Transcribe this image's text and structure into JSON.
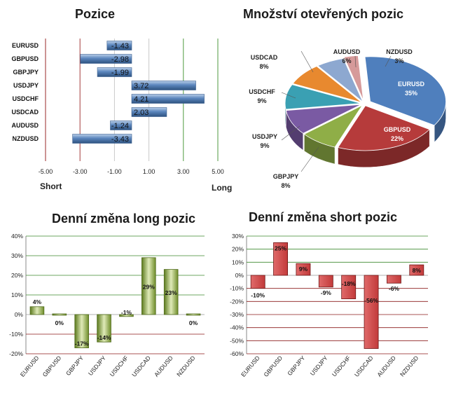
{
  "colors": {
    "bar_blue": "#5b86bd",
    "bar_green": "#8aa83e",
    "bar_dark_green": "#4f6a1c",
    "bar_red": "#c23a3a",
    "grid_green": "#3d8a2e",
    "grid_red": "#8b1a1a"
  },
  "chart_data": [
    {
      "id": "positions",
      "type": "bar",
      "orientation": "horizontal",
      "title": "Pozice",
      "categories": [
        "EURUSD",
        "GBPUSD",
        "GBPJPY",
        "USDJPY",
        "USDCHF",
        "USDCAD",
        "AUDUSD",
        "NZDUSD"
      ],
      "values": [
        -1.43,
        -2.98,
        -1.99,
        3.72,
        4.21,
        2.03,
        -1.24,
        -3.43
      ],
      "value_labels": [
        "-1.43",
        "-2.98",
        "-1.99",
        "3.72",
        "4.21",
        "2.03",
        "-1.24",
        "-3.43"
      ],
      "xlim": [
        -5,
        5
      ],
      "xticks": [
        "-5.00",
        "-3.00",
        "-1.00",
        "1.00",
        "3.00",
        "5.00"
      ],
      "xtick_values": [
        -5,
        -3,
        -1,
        1,
        3,
        5
      ],
      "left_label": "Short",
      "right_label": "Long"
    },
    {
      "id": "open_positions",
      "type": "pie",
      "title": "Množství otevřených pozic",
      "slices": [
        {
          "label": "EURUSD",
          "value": 35,
          "pct": "35%",
          "color": "#4f7fbd"
        },
        {
          "label": "GBPUSD",
          "value": 22,
          "pct": "22%",
          "color": "#b63b3b"
        },
        {
          "label": "GBPJPY",
          "value": 8,
          "pct": "8%",
          "color": "#8fae47"
        },
        {
          "label": "USDJPY",
          "value": 9,
          "pct": "9%",
          "color": "#7a5aa3"
        },
        {
          "label": "USDCHF",
          "value": 9,
          "pct": "9%",
          "color": "#3aa0b3"
        },
        {
          "label": "USDCAD",
          "value": 8,
          "pct": "8%",
          "color": "#e8892f"
        },
        {
          "label": "AUDUSD",
          "value": 6,
          "pct": "6%",
          "color": "#8da8d0"
        },
        {
          "label": "NZDUSD",
          "value": 3,
          "pct": "3%",
          "color": "#d69a9a"
        }
      ]
    },
    {
      "id": "daily_long",
      "type": "bar",
      "title": "Denní změna long pozic",
      "categories": [
        "EURUSD",
        "GBPUSD",
        "GBPJPY",
        "USDJPY",
        "USDCHF",
        "USDCAD",
        "AUDUSD",
        "NZDUSD"
      ],
      "values": [
        4,
        0,
        -17,
        -14,
        -1,
        29,
        23,
        0
      ],
      "value_labels": [
        "4%",
        "0%",
        "-17%",
        "-14%",
        "-1%",
        "29%",
        "23%",
        "0%"
      ],
      "ylim": [
        -20,
        40
      ],
      "yticks": [
        "-20%",
        "-10%",
        "0%",
        "10%",
        "20%",
        "30%",
        "40%"
      ],
      "ytick_values": [
        -20,
        -10,
        0,
        10,
        20,
        30,
        40
      ]
    },
    {
      "id": "daily_short",
      "type": "bar",
      "title": "Denní změna short pozic",
      "categories": [
        "EURUSD",
        "GBPUSD",
        "GBPJPY",
        "USDJPY",
        "USDCHF",
        "USDCAD",
        "AUDUSD",
        "NZDUSD"
      ],
      "values": [
        -10,
        25,
        9,
        -9,
        -18,
        -56,
        -6,
        8
      ],
      "value_labels": [
        "-10%",
        "25%",
        "9%",
        "-9%",
        "-18%",
        "-56%",
        "-6%",
        "8%"
      ],
      "ylim": [
        -60,
        30
      ],
      "yticks": [
        "-60%",
        "-50%",
        "-40%",
        "-30%",
        "-20%",
        "-10%",
        "0%",
        "10%",
        "20%",
        "30%"
      ],
      "ytick_values": [
        -60,
        -50,
        -40,
        -30,
        -20,
        -10,
        0,
        10,
        20,
        30
      ]
    }
  ]
}
